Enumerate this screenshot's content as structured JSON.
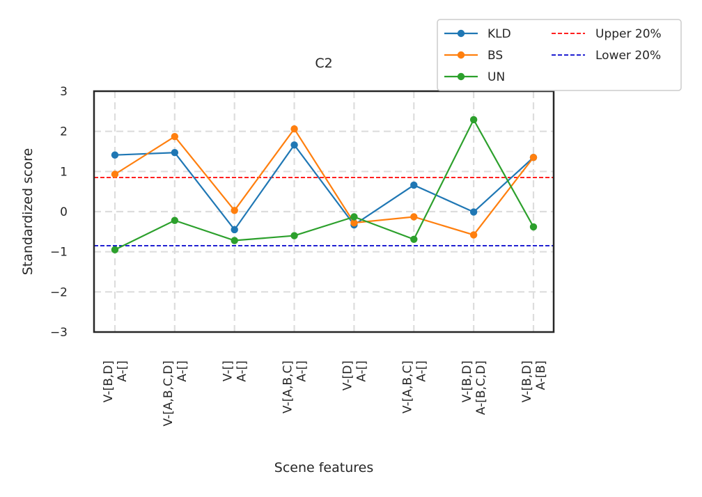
{
  "chart_data": {
    "type": "line",
    "title": "C2",
    "xlabel": "Scene features",
    "ylabel": "Standardized score",
    "ylim": [
      -3,
      3
    ],
    "yticks": [
      -3,
      -2,
      -1,
      0,
      1,
      2,
      3
    ],
    "ytick_labels": [
      "−3",
      "−2",
      "−1",
      "0",
      "1",
      "2",
      "3"
    ],
    "grid": true,
    "categories": [
      [
        "V-[B,D]",
        "A-[]"
      ],
      [
        "V-[A,B,C,D]",
        "A-[]"
      ],
      [
        "V-[]",
        "A-[]"
      ],
      [
        "V-[A,B,C]",
        "A-[]"
      ],
      [
        "V-[D]",
        "A-[]"
      ],
      [
        "V-[A,B,C]",
        "A-[]"
      ],
      [
        "V-[B,D]",
        "A-[B,C,D]"
      ],
      [
        "V-[B,D]",
        "A-[B]"
      ]
    ],
    "series": [
      {
        "name": "KLD",
        "color": "#1f77b4",
        "values": [
          1.41,
          1.47,
          -0.45,
          1.66,
          -0.33,
          0.66,
          -0.01,
          1.35
        ]
      },
      {
        "name": "BS",
        "color": "#ff7f0e",
        "values": [
          0.93,
          1.87,
          0.03,
          2.06,
          -0.28,
          -0.13,
          -0.58,
          1.35
        ]
      },
      {
        "name": "UN",
        "color": "#2ca02c",
        "values": [
          -0.95,
          -0.22,
          -0.72,
          -0.6,
          -0.13,
          -0.69,
          2.29,
          -0.38
        ]
      }
    ],
    "reference_lines": [
      {
        "name": "Upper 20%",
        "value": 0.85,
        "color": "#ff0000",
        "style": "dashed"
      },
      {
        "name": "Lower 20%",
        "value": -0.85,
        "color": "#0000cc",
        "style": "dashed"
      }
    ],
    "legend": {
      "position": "top-right",
      "entries": [
        "KLD",
        "BS",
        "UN",
        "Upper 20%",
        "Lower 20%"
      ]
    }
  }
}
